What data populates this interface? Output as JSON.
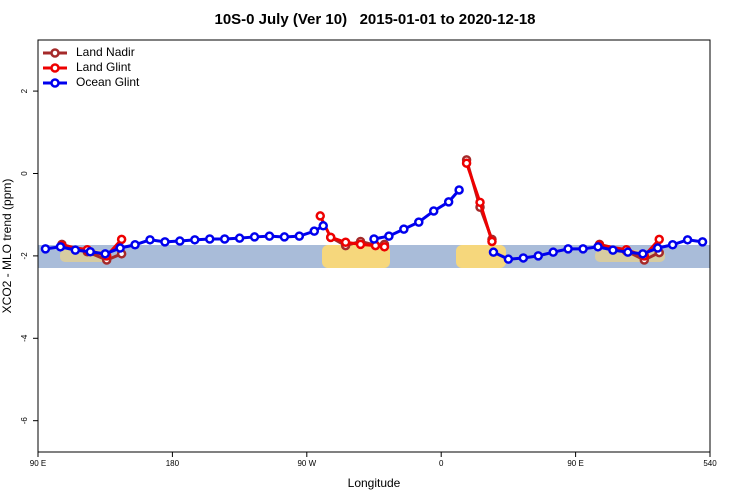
{
  "chart_data": {
    "type": "line",
    "title": "10S-0 July (Ver 10)   2015-01-01 to 2020-12-18",
    "xlabel": "Longitude",
    "ylabel": "XCO2 - MLO trend (ppm)",
    "xlim": [
      90,
      540
    ],
    "ylim": [
      -6.76,
      3.24
    ],
    "xticks": [
      {
        "value": 90,
        "label": "90 E"
      },
      180,
      {
        "value": 270,
        "label": "90 W"
      },
      {
        "value": 360,
        "label": "0"
      },
      {
        "value": 450,
        "label": "90 E"
      },
      540
    ],
    "yticks": [
      2,
      0,
      -2,
      -4,
      -6
    ],
    "legend": "top-left",
    "series": [
      {
        "name": "Land Nadir",
        "color": "#a52a2a",
        "x": [
          106,
          123,
          136,
          146,
          null,
          286,
          296,
          306,
          316,
          322,
          null,
          377,
          386,
          394,
          null,
          466,
          484,
          496,
          506
        ],
        "values": [
          -1.72,
          -1.9,
          -2.1,
          -1.95,
          null,
          -1.55,
          -1.75,
          -1.65,
          -1.74,
          -1.72,
          null,
          0.33,
          -0.82,
          -1.6,
          null,
          -1.72,
          -1.88,
          -2.1,
          -1.92
        ]
      },
      {
        "name": "Land Glint",
        "color": "#ee0000",
        "x": [
          106,
          123,
          136,
          146,
          null,
          279,
          286,
          296,
          306,
          316,
          322,
          null,
          377,
          386,
          394,
          null,
          466,
          484,
          496,
          506
        ],
        "values": [
          -1.75,
          -1.85,
          -2.0,
          -1.6,
          null,
          -1.03,
          -1.55,
          -1.67,
          -1.72,
          -1.75,
          -1.78,
          null,
          0.25,
          -0.7,
          -1.65,
          null,
          -1.74,
          -1.85,
          -2.0,
          -1.6
        ]
      },
      {
        "name": "Ocean Glint",
        "color": "#0000ee",
        "x": [
          95,
          105,
          115,
          125,
          135,
          145,
          155,
          165,
          175,
          185,
          195,
          205,
          215,
          225,
          235,
          245,
          255,
          265,
          275,
          281,
          null,
          315,
          325,
          335,
          345,
          355,
          365,
          372,
          null,
          395,
          405,
          415,
          425,
          435,
          445,
          455,
          465,
          475,
          485,
          495,
          505,
          515,
          525,
          535
        ],
        "values": [
          -1.83,
          -1.78,
          -1.86,
          -1.9,
          -1.95,
          -1.81,
          -1.73,
          -1.61,
          -1.66,
          -1.64,
          -1.61,
          -1.59,
          -1.59,
          -1.57,
          -1.54,
          -1.52,
          -1.54,
          -1.52,
          -1.4,
          -1.27,
          null,
          -1.59,
          -1.52,
          -1.35,
          -1.18,
          -0.91,
          -0.69,
          -0.4,
          null,
          -1.91,
          -2.08,
          -2.05,
          -2.0,
          -1.91,
          -1.83,
          -1.83,
          -1.78,
          -1.86,
          -1.91,
          -1.95,
          -1.81,
          -1.73,
          -1.61,
          -1.66
        ]
      }
    ]
  }
}
